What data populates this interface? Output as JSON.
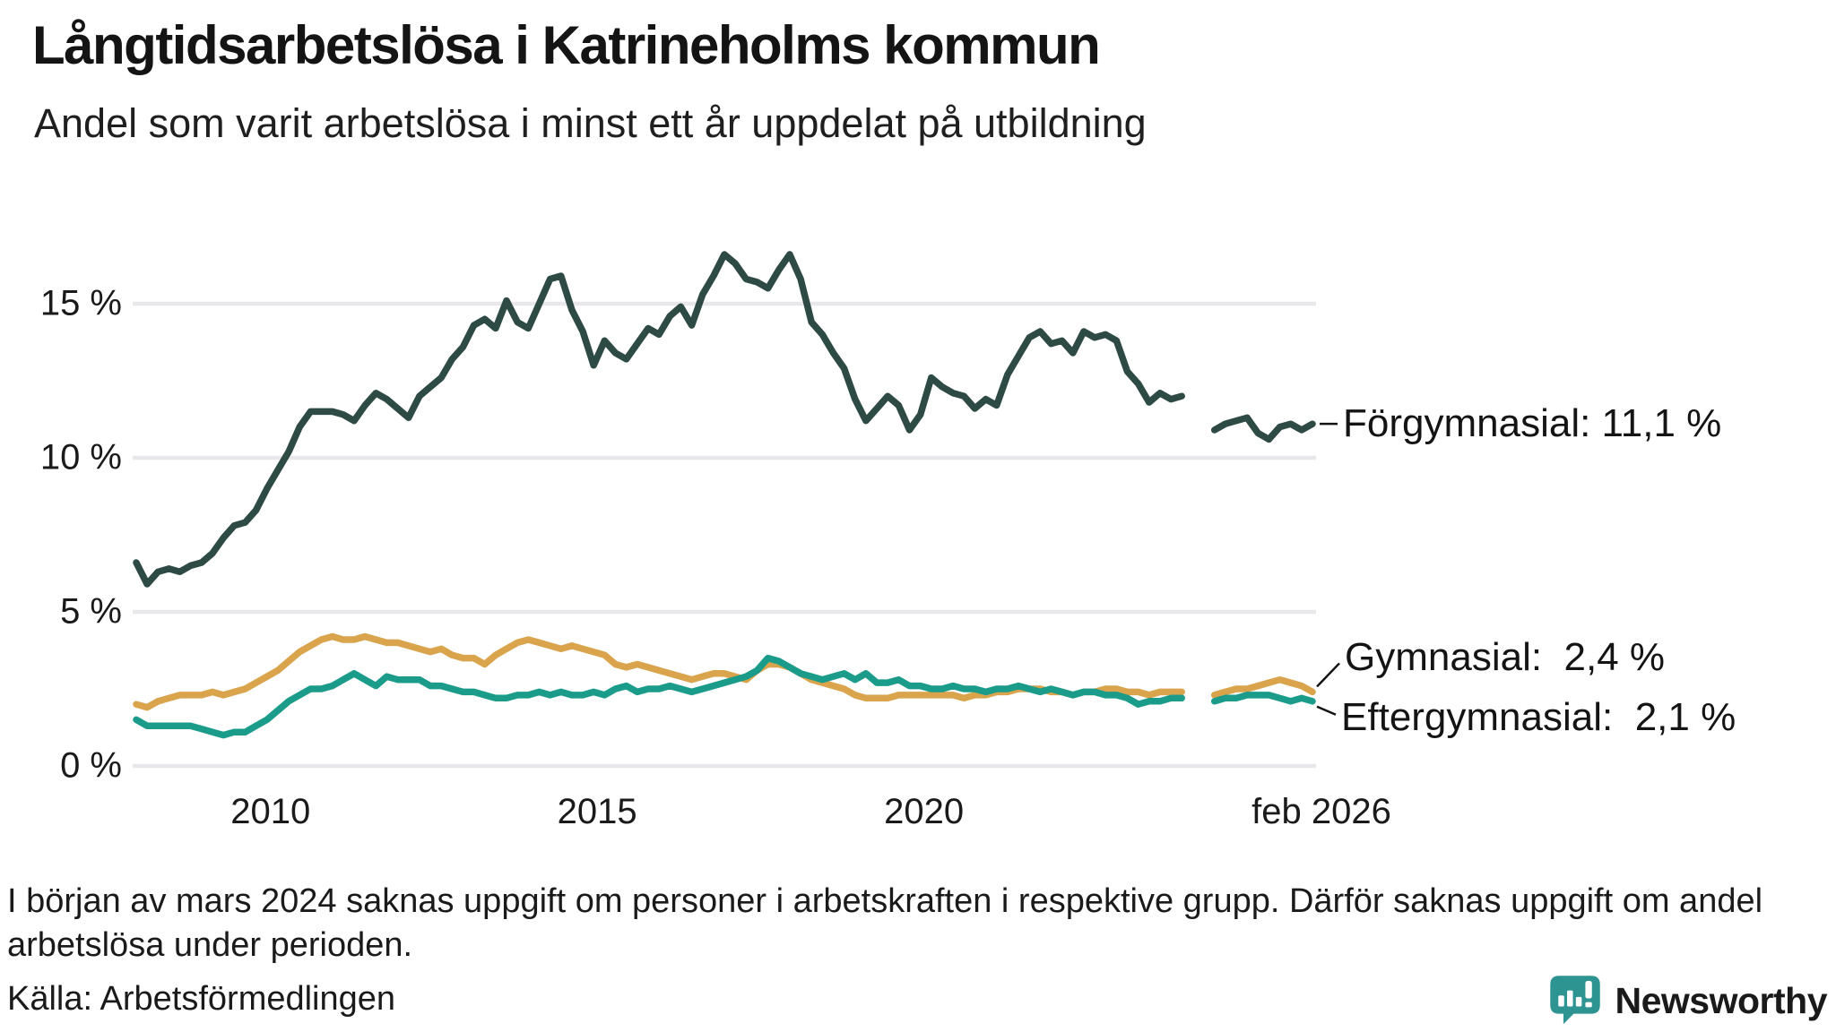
{
  "header": {
    "title": "Långtidsarbetslösa i Katrineholms kommun",
    "subtitle": "Andel som varit arbetslösa i minst ett år uppdelat på utbildning"
  },
  "chart_data": {
    "type": "line",
    "title": "Långtidsarbetslösa i Katrineholms kommun",
    "subtitle": "Andel som varit arbetslösa i minst ett år uppdelat på utbildning",
    "unit": "%",
    "grid": "horizontal",
    "x_axis": {
      "start": 2008.083,
      "end": 2026.083,
      "step": 0.16667,
      "ticks": [
        {
          "t": 2010,
          "label": "2010"
        },
        {
          "t": 2015,
          "label": "2015"
        },
        {
          "t": 2020,
          "label": "2020"
        },
        {
          "t": 2026.083,
          "label": "feb 2026"
        }
      ]
    },
    "y_axis": {
      "ticks": [
        0,
        5,
        10,
        15
      ],
      "tick_labels": [
        "0 %",
        "5 %",
        "10 %",
        "15 %"
      ],
      "range": [
        0,
        17.5
      ]
    },
    "gap_note": "värden saknas mars–juli 2024 (null i serierna)",
    "series": [
      {
        "name": "Förgymnasial",
        "color": "#2e4a45",
        "end_label": "Förgymnasial: 11,1 %",
        "end_value": "11,1 %",
        "values": [
          6.6,
          5.9,
          6.3,
          6.4,
          6.3,
          6.5,
          6.6,
          6.9,
          7.4,
          7.8,
          7.9,
          8.3,
          9.0,
          9.6,
          10.2,
          11.0,
          11.5,
          11.5,
          11.5,
          11.4,
          11.2,
          11.7,
          12.1,
          11.9,
          11.6,
          11.3,
          12.0,
          12.3,
          12.6,
          13.2,
          13.6,
          14.3,
          14.5,
          14.2,
          15.1,
          14.4,
          14.2,
          15.0,
          15.8,
          15.9,
          14.8,
          14.1,
          13.0,
          13.8,
          13.4,
          13.2,
          13.7,
          14.2,
          14.0,
          14.6,
          14.9,
          14.3,
          15.3,
          15.9,
          16.6,
          16.3,
          15.8,
          15.7,
          15.5,
          16.1,
          16.6,
          15.8,
          14.4,
          14.0,
          13.4,
          12.9,
          11.9,
          11.2,
          11.6,
          12.0,
          11.7,
          10.9,
          11.4,
          12.6,
          12.3,
          12.1,
          12.0,
          11.6,
          11.9,
          11.7,
          12.7,
          13.3,
          13.9,
          14.1,
          13.7,
          13.8,
          13.4,
          14.1,
          13.9,
          14.0,
          13.8,
          12.8,
          12.4,
          11.8,
          12.1,
          11.9,
          12.0,
          null,
          null,
          10.9,
          11.1,
          11.2,
          11.3,
          10.8,
          10.6,
          11.0,
          11.1,
          10.9,
          11.1
        ]
      },
      {
        "name": "Gymnasial",
        "color": "#d9a44c",
        "end_label": "Gymnasial:  2,4 %",
        "end_value": "2,4 %",
        "values": [
          2.0,
          1.9,
          2.1,
          2.2,
          2.3,
          2.3,
          2.3,
          2.4,
          2.3,
          2.4,
          2.5,
          2.7,
          2.9,
          3.1,
          3.4,
          3.7,
          3.9,
          4.1,
          4.2,
          4.1,
          4.1,
          4.2,
          4.1,
          4.0,
          4.0,
          3.9,
          3.8,
          3.7,
          3.8,
          3.6,
          3.5,
          3.5,
          3.3,
          3.6,
          3.8,
          4.0,
          4.1,
          4.0,
          3.9,
          3.8,
          3.9,
          3.8,
          3.7,
          3.6,
          3.3,
          3.2,
          3.3,
          3.2,
          3.1,
          3.0,
          2.9,
          2.8,
          2.9,
          3.0,
          3.0,
          2.9,
          2.8,
          3.1,
          3.3,
          3.3,
          3.2,
          3.0,
          2.8,
          2.7,
          2.6,
          2.5,
          2.3,
          2.2,
          2.2,
          2.2,
          2.3,
          2.3,
          2.3,
          2.3,
          2.3,
          2.3,
          2.2,
          2.3,
          2.3,
          2.4,
          2.4,
          2.5,
          2.5,
          2.5,
          2.4,
          2.4,
          2.3,
          2.4,
          2.4,
          2.5,
          2.5,
          2.4,
          2.4,
          2.3,
          2.4,
          2.4,
          2.4,
          null,
          null,
          2.3,
          2.4,
          2.5,
          2.5,
          2.6,
          2.7,
          2.8,
          2.7,
          2.6,
          2.4
        ]
      },
      {
        "name": "Eftergymnasial",
        "color": "#1b9c8b",
        "end_label": "Eftergymnasial:  2,1 %",
        "end_value": "2,1 %",
        "values": [
          1.5,
          1.3,
          1.3,
          1.3,
          1.3,
          1.3,
          1.2,
          1.1,
          1.0,
          1.1,
          1.1,
          1.3,
          1.5,
          1.8,
          2.1,
          2.3,
          2.5,
          2.5,
          2.6,
          2.8,
          3.0,
          2.8,
          2.6,
          2.9,
          2.8,
          2.8,
          2.8,
          2.6,
          2.6,
          2.5,
          2.4,
          2.4,
          2.3,
          2.2,
          2.2,
          2.3,
          2.3,
          2.4,
          2.3,
          2.4,
          2.3,
          2.3,
          2.4,
          2.3,
          2.5,
          2.6,
          2.4,
          2.5,
          2.5,
          2.6,
          2.5,
          2.4,
          2.5,
          2.6,
          2.7,
          2.8,
          2.9,
          3.1,
          3.5,
          3.4,
          3.2,
          3.0,
          2.9,
          2.8,
          2.9,
          3.0,
          2.8,
          3.0,
          2.7,
          2.7,
          2.8,
          2.6,
          2.6,
          2.5,
          2.5,
          2.6,
          2.5,
          2.5,
          2.4,
          2.5,
          2.5,
          2.6,
          2.5,
          2.4,
          2.5,
          2.4,
          2.3,
          2.4,
          2.4,
          2.3,
          2.3,
          2.2,
          2.0,
          2.1,
          2.1,
          2.2,
          2.2,
          null,
          null,
          2.1,
          2.2,
          2.2,
          2.3,
          2.3,
          2.3,
          2.2,
          2.1,
          2.2,
          2.1
        ]
      }
    ]
  },
  "footnote": "I början av mars 2024 saknas uppgift om personer i arbetskraften i respektive grupp. Därför saknas uppgift om andel arbetslösa under perioden.",
  "source": "Källa: Arbetsförmedlingen",
  "logo": {
    "text": "Newsworthy",
    "color": "#2e8f90",
    "icon_color": "#2d9492",
    "icon": "newsworthy-bubble-chart-icon"
  }
}
